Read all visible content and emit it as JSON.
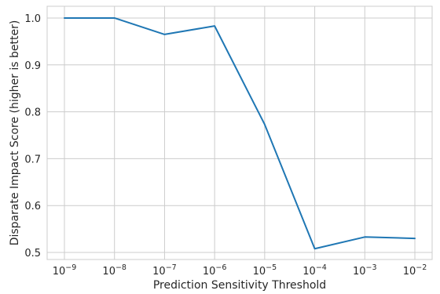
{
  "chart_data": {
    "type": "line",
    "xscale": "log",
    "x": [
      1e-09,
      1e-08,
      1e-07,
      1e-06,
      1e-05,
      0.0001,
      0.001,
      0.01
    ],
    "x_tick_bases": [
      "10",
      "10",
      "10",
      "10",
      "10",
      "10",
      "10",
      "10"
    ],
    "x_tick_exponents": [
      "−9",
      "−8",
      "−7",
      "−6",
      "−5",
      "−4",
      "−3",
      "−2"
    ],
    "series": [
      {
        "values": [
          1.0,
          1.0,
          0.965,
          0.983,
          0.773,
          0.508,
          0.533,
          0.53
        ],
        "color": "#1f77b4"
      }
    ],
    "xlabel": "Prediction Sensitivity Threshold",
    "ylabel": "Disparate Impact Score (higher is better)",
    "ylim": [
      0.485,
      1.025
    ],
    "yticks": [
      0.5,
      0.6,
      0.7,
      0.8,
      0.9,
      1.0
    ],
    "ytick_labels": [
      "0.5",
      "0.6",
      "0.7",
      "0.8",
      "0.9",
      "1.0"
    ],
    "grid": true,
    "background": "#ffffff",
    "grid_color": "#cccccc"
  }
}
